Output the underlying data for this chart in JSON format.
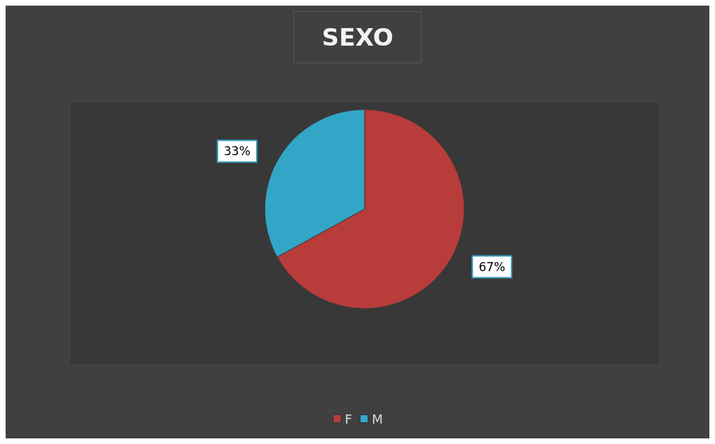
{
  "chart_data": {
    "type": "pie",
    "title": "SEXO",
    "categories": [
      "F",
      "M"
    ],
    "values": [
      67,
      33
    ],
    "colors": [
      "#b83c3a",
      "#33a6c8"
    ],
    "value_labels": [
      "67%",
      "33%"
    ],
    "legend": "bottom"
  }
}
